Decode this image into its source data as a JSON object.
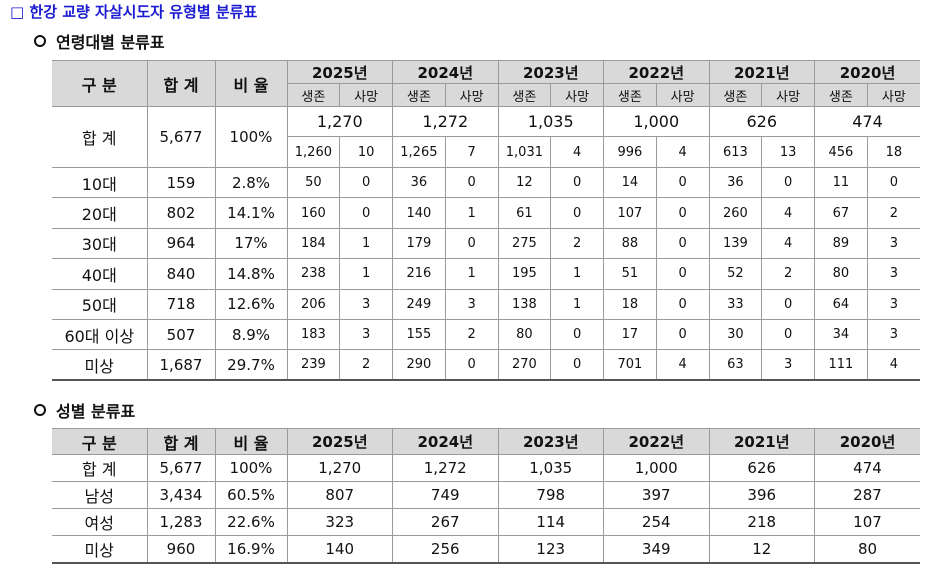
{
  "title": "□ 한강 교량 자살시도자 유형별 분류표",
  "age_table": {
    "heading": "연령대별 분류표",
    "header": [
      "구 분",
      "합 계",
      "비 율"
    ],
    "years": [
      "2025년",
      "2024년",
      "2023년",
      "2022년",
      "2021년",
      "2020년"
    ],
    "sub_header": [
      "생존",
      "사망"
    ],
    "total_row": {
      "label": "합 계",
      "total": "5,677",
      "ratio": "100%",
      "year_totals": [
        "1,270",
        "1,272",
        "1,035",
        "1,000",
        "626",
        "474"
      ],
      "pairs": [
        [
          "1,260",
          "10"
        ],
        [
          "1,265",
          "7"
        ],
        [
          "1,031",
          "4"
        ],
        [
          "996",
          "4"
        ],
        [
          "613",
          "13"
        ],
        [
          "456",
          "18"
        ]
      ]
    },
    "rows": [
      {
        "label": "10대",
        "total": "159",
        "ratio": "2.8%",
        "pairs": [
          [
            "50",
            "0"
          ],
          [
            "36",
            "0"
          ],
          [
            "12",
            "0"
          ],
          [
            "14",
            "0"
          ],
          [
            "36",
            "0"
          ],
          [
            "11",
            "0"
          ]
        ]
      },
      {
        "label": "20대",
        "total": "802",
        "ratio": "14.1%",
        "pairs": [
          [
            "160",
            "0"
          ],
          [
            "140",
            "1"
          ],
          [
            "61",
            "0"
          ],
          [
            "107",
            "0"
          ],
          [
            "260",
            "4"
          ],
          [
            "67",
            "2"
          ]
        ]
      },
      {
        "label": "30대",
        "total": "964",
        "ratio": "17%",
        "pairs": [
          [
            "184",
            "1"
          ],
          [
            "179",
            "0"
          ],
          [
            "275",
            "2"
          ],
          [
            "88",
            "0"
          ],
          [
            "139",
            "4"
          ],
          [
            "89",
            "3"
          ]
        ]
      },
      {
        "label": "40대",
        "total": "840",
        "ratio": "14.8%",
        "pairs": [
          [
            "238",
            "1"
          ],
          [
            "216",
            "1"
          ],
          [
            "195",
            "1"
          ],
          [
            "51",
            "0"
          ],
          [
            "52",
            "2"
          ],
          [
            "80",
            "3"
          ]
        ]
      },
      {
        "label": "50대",
        "total": "718",
        "ratio": "12.6%",
        "pairs": [
          [
            "206",
            "3"
          ],
          [
            "249",
            "3"
          ],
          [
            "138",
            "1"
          ],
          [
            "18",
            "0"
          ],
          [
            "33",
            "0"
          ],
          [
            "64",
            "3"
          ]
        ]
      },
      {
        "label": "60대 이상",
        "total": "507",
        "ratio": "8.9%",
        "pairs": [
          [
            "183",
            "3"
          ],
          [
            "155",
            "2"
          ],
          [
            "80",
            "0"
          ],
          [
            "17",
            "0"
          ],
          [
            "30",
            "0"
          ],
          [
            "34",
            "3"
          ]
        ]
      },
      {
        "label": "미상",
        "total": "1,687",
        "ratio": "29.7%",
        "pairs": [
          [
            "239",
            "2"
          ],
          [
            "290",
            "0"
          ],
          [
            "270",
            "0"
          ],
          [
            "701",
            "4"
          ],
          [
            "63",
            "3"
          ],
          [
            "111",
            "4"
          ]
        ]
      }
    ]
  },
  "gender_table": {
    "heading": "성별 분류표",
    "header": [
      "구 분",
      "합 계",
      "비 율",
      "2025년",
      "2024년",
      "2023년",
      "2022년",
      "2021년",
      "2020년"
    ],
    "rows": [
      [
        "합 계",
        "5,677",
        "100%",
        "1,270",
        "1,272",
        "1,035",
        "1,000",
        "626",
        "474"
      ],
      [
        "남성",
        "3,434",
        "60.5%",
        "807",
        "749",
        "798",
        "397",
        "396",
        "287"
      ],
      [
        "여성",
        "1,283",
        "22.6%",
        "323",
        "267",
        "114",
        "254",
        "218",
        "107"
      ],
      [
        "미상",
        "960",
        "16.9%",
        "140",
        "256",
        "123",
        "349",
        "12",
        "80"
      ]
    ]
  }
}
